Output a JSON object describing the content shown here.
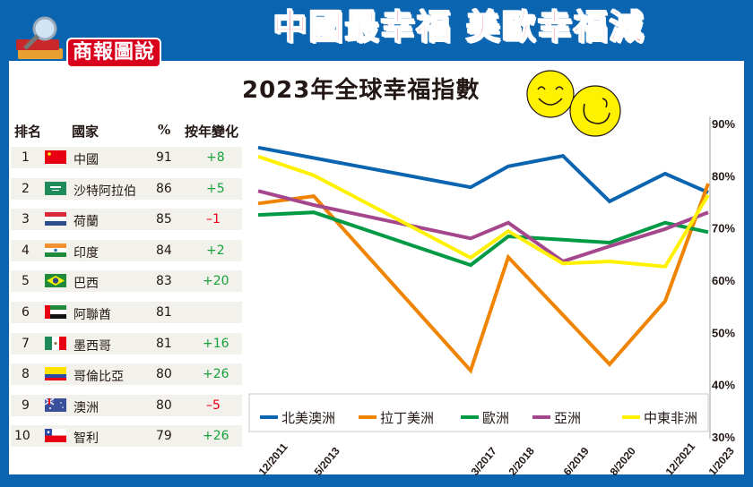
{
  "header": {
    "logo_label": "商報圖說",
    "headline": "中國最幸福 美歐幸福減"
  },
  "ranking_table": {
    "columns": [
      "排名",
      "國家",
      "%",
      "按年變化"
    ],
    "rows": [
      {
        "rank": "1",
        "flag": "china-flag",
        "country": "中國",
        "pct": "91",
        "change": "+8",
        "change_sign": "pos"
      },
      {
        "rank": "2",
        "flag": "saudi-arabia-flag",
        "country": "沙特阿拉伯",
        "pct": "86",
        "change": "+5",
        "change_sign": "pos"
      },
      {
        "rank": "3",
        "flag": "netherlands-flag",
        "country": "荷蘭",
        "pct": "85",
        "change": "–1",
        "change_sign": "neg"
      },
      {
        "rank": "4",
        "flag": "india-flag",
        "country": "印度",
        "pct": "84",
        "change": "+2",
        "change_sign": "pos"
      },
      {
        "rank": "5",
        "flag": "brazil-flag",
        "country": "巴西",
        "pct": "83",
        "change": "+20",
        "change_sign": "pos"
      },
      {
        "rank": "6",
        "flag": "uae-flag",
        "country": "阿聯酋",
        "pct": "81",
        "change": "",
        "change_sign": "none"
      },
      {
        "rank": "7",
        "flag": "mexico-flag",
        "country": "墨西哥",
        "pct": "81",
        "change": "+16",
        "change_sign": "pos"
      },
      {
        "rank": "8",
        "flag": "colombia-flag",
        "country": "哥倫比亞",
        "pct": "80",
        "change": "+26",
        "change_sign": "pos"
      },
      {
        "rank": "9",
        "flag": "australia-flag",
        "country": "澳洲",
        "pct": "80",
        "change": "–5",
        "change_sign": "neg"
      },
      {
        "rank": "10",
        "flag": "chile-flag",
        "country": "智利",
        "pct": "79",
        "change": "+26",
        "change_sign": "pos"
      }
    ]
  },
  "chart_data": {
    "type": "line",
    "title": "2023年全球幸福指數",
    "xlabel": "",
    "ylabel": "",
    "x": [
      "12/2011",
      "5/2013",
      "3/2017",
      "2/2018",
      "6/2019",
      "8/2020",
      "12/2021",
      "1/2023"
    ],
    "x_years": [
      2011.92,
      2013.38,
      2017.17,
      2018.08,
      2019.42,
      2020.58,
      2021.92,
      2023.0
    ],
    "ylim": [
      30,
      90
    ],
    "yticks": [
      "30%",
      "40%",
      "50%",
      "60%",
      "70%",
      "80%",
      "90%"
    ],
    "ytick_values": [
      30,
      40,
      50,
      60,
      70,
      80,
      90
    ],
    "y_axis_side": "right",
    "grid": false,
    "legend_position": "bottom",
    "series": [
      {
        "name": "北美澳洲",
        "color": "#0a64b0",
        "values": [
          85.4,
          null,
          77.8,
          81.8,
          83.8,
          75.1,
          80.4,
          76.8
        ]
      },
      {
        "name": "拉丁美洲",
        "color": "#f08300",
        "values": [
          74.7,
          76.1,
          42.7,
          64.4,
          null,
          43.9,
          56.0,
          78.5
        ]
      },
      {
        "name": "歐洲",
        "color": "#009944",
        "values": [
          72.5,
          73.0,
          62.9,
          68.4,
          null,
          67.2,
          71.0,
          69.2
        ]
      },
      {
        "name": "亞洲",
        "color": "#a4478c",
        "values": [
          77.1,
          74.4,
          68.0,
          71.0,
          63.6,
          66.5,
          69.8,
          73.0
        ]
      },
      {
        "name": "中東非洲",
        "color": "#fff100",
        "values": [
          83.7,
          80.1,
          64.3,
          69.4,
          63.2,
          63.6,
          62.6,
          76.3
        ]
      }
    ]
  },
  "decorations": {
    "smiley_icons": 2
  }
}
